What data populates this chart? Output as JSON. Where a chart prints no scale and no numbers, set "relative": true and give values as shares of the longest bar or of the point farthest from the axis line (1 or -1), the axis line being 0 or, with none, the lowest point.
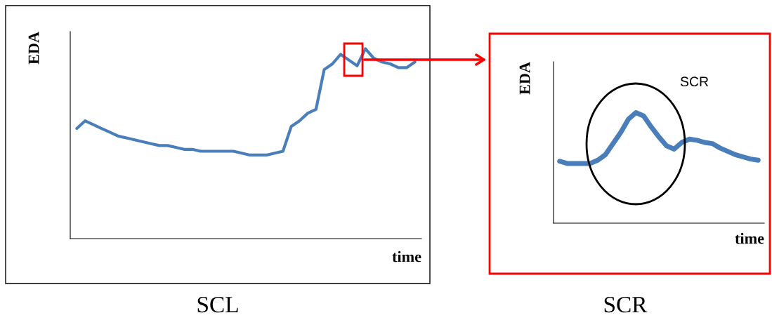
{
  "chart_data": [
    {
      "type": "line",
      "relative": true,
      "xlabel": "time",
      "ylabel": "EDA",
      "tick_labels": false,
      "annotations": [
        "SCL"
      ],
      "categories": [
        null,
        null,
        null,
        null,
        null,
        null,
        null,
        null,
        null,
        null,
        null,
        null,
        null,
        null,
        null,
        null,
        null,
        null,
        null,
        null,
        null,
        null,
        null,
        null,
        null,
        null,
        null,
        null,
        null,
        null,
        null,
        null,
        null,
        null,
        null,
        null,
        null,
        null,
        null,
        null,
        null,
        null
      ],
      "series": [
        {
          "color": "#4a7ebb",
          "values": [
            0.58,
            0.62,
            0.6,
            0.58,
            0.56,
            0.54,
            0.53,
            0.52,
            0.51,
            0.5,
            0.49,
            0.49,
            0.48,
            0.47,
            0.47,
            0.46,
            0.46,
            0.46,
            0.46,
            0.46,
            0.45,
            0.44,
            0.44,
            0.44,
            0.45,
            0.46,
            0.59,
            0.62,
            0.66,
            0.68,
            0.89,
            0.92,
            0.97,
            0.94,
            0.91,
            1.0,
            0.95,
            0.93,
            0.92,
            0.9,
            0.9,
            0.93
          ]
        }
      ]
    },
    {
      "type": "line",
      "relative": true,
      "xlabel": "time",
      "ylabel": "EDA",
      "tick_labels": false,
      "annotations": [
        "SCR",
        "SCR"
      ],
      "categories": [
        null,
        null,
        null,
        null,
        null,
        null,
        null,
        null,
        null,
        null,
        null,
        null,
        null,
        null,
        null,
        null,
        null,
        null,
        null,
        null,
        null,
        null,
        null,
        null,
        null,
        null,
        null
      ],
      "series": [
        {
          "color": "#4a7ebb",
          "values": [
            0.56,
            0.54,
            0.54,
            0.54,
            0.54,
            0.57,
            0.62,
            0.72,
            0.82,
            0.94,
            1.0,
            0.97,
            0.87,
            0.78,
            0.7,
            0.67,
            0.73,
            0.76,
            0.75,
            0.73,
            0.72,
            0.68,
            0.65,
            0.62,
            0.6,
            0.58,
            0.57
          ]
        }
      ]
    }
  ]
}
